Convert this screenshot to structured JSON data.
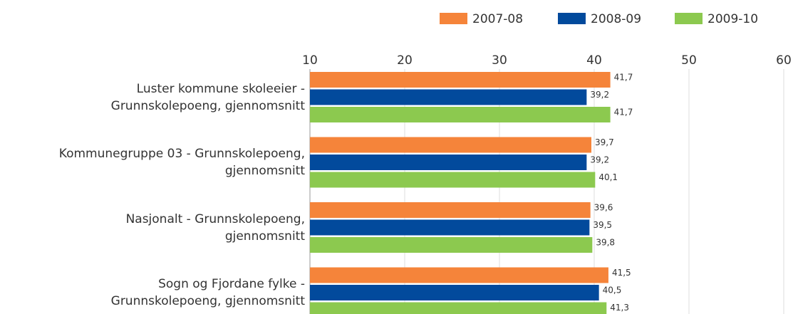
{
  "chart_data": {
    "type": "hbar",
    "categories": [
      "Luster kommune skoleeier -\nGrunnskolepoeng, gjennomsnitt",
      "Kommunegruppe 03 - Grunnskolepoeng,\ngjennomsnitt",
      "Nasjonalt - Grunnskolepoeng,\ngjennomsnitt",
      "Sogn og Fjordane fylke -\nGrunnskolepoeng, gjennomsnitt"
    ],
    "series": [
      {
        "name": "2007-08",
        "color": "#f5843a",
        "values": [
          41.7,
          39.7,
          39.6,
          41.5
        ],
        "value_labels": [
          "41,7",
          "39,7",
          "39,6",
          "41,5"
        ]
      },
      {
        "name": "2008-09",
        "color": "#024a9c",
        "values": [
          39.2,
          39.2,
          39.5,
          40.5
        ],
        "value_labels": [
          "39,2",
          "39,2",
          "39,5",
          "40,5"
        ]
      },
      {
        "name": "2009-10",
        "color": "#8cc94f",
        "values": [
          41.7,
          40.1,
          39.8,
          41.3
        ],
        "value_labels": [
          "41,7",
          "40,1",
          "39,8",
          "41,3"
        ]
      }
    ],
    "xlim": [
      10,
      60
    ],
    "xticks": [
      10,
      20,
      30,
      40,
      50,
      60
    ],
    "grid": true,
    "legend": "top-right"
  }
}
